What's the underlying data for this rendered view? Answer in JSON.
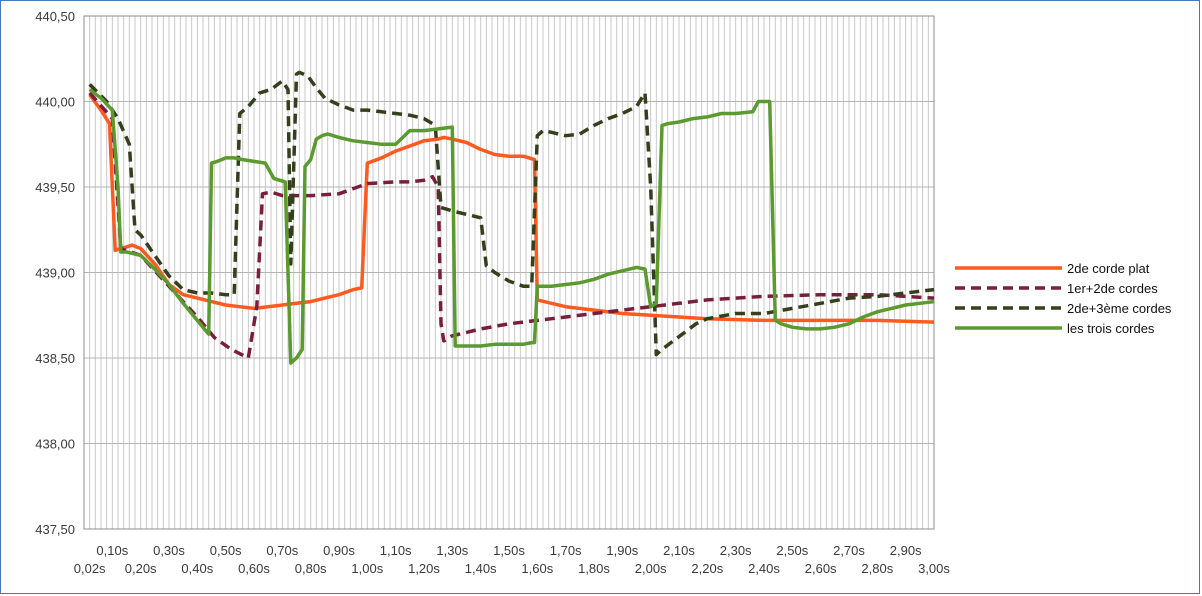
{
  "chart_data": {
    "type": "line",
    "title": "",
    "xlabel": "",
    "ylabel": "",
    "ylim": [
      437.5,
      440.5
    ],
    "yticks": [
      "437,50",
      "438,00",
      "438,50",
      "439,00",
      "439,50",
      "440,00",
      "440,50"
    ],
    "ytick_values": [
      437.5,
      438.0,
      438.5,
      439.0,
      439.5,
      440.0,
      440.5
    ],
    "xlim": [
      0.02,
      3.0
    ],
    "xticks_upper": [
      "0,10s",
      "0,30s",
      "0,50s",
      "0,70s",
      "0,90s",
      "1,10s",
      "1,30s",
      "1,50s",
      "1,70s",
      "1,90s",
      "2,10s",
      "2,30s",
      "2,50s",
      "2,70s",
      "2,90s"
    ],
    "xticks_upper_values": [
      0.1,
      0.3,
      0.5,
      0.7,
      0.9,
      1.1,
      1.3,
      1.5,
      1.7,
      1.9,
      2.1,
      2.3,
      2.5,
      2.7,
      2.9
    ],
    "xticks_lower": [
      "0,02s",
      "0,20s",
      "0,40s",
      "0,60s",
      "0,80s",
      "1,00s",
      "1,20s",
      "1,40s",
      "1,60s",
      "1,80s",
      "2,00s",
      "2,20s",
      "2,40s",
      "2,60s",
      "2,80s",
      "3,00s"
    ],
    "xticks_lower_values": [
      0.02,
      0.2,
      0.4,
      0.6,
      0.8,
      1.0,
      1.2,
      1.4,
      1.6,
      1.8,
      2.0,
      2.2,
      2.4,
      2.6,
      2.8,
      3.0
    ],
    "grid": "vertical-every-0.02s, horizontal-every-0.50",
    "legend_position": "right",
    "series": [
      {
        "name": "2de corde plat",
        "color": "#ff5a1f",
        "dash": "solid",
        "x": [
          0.02,
          0.06,
          0.09,
          0.11,
          0.13,
          0.15,
          0.17,
          0.2,
          0.25,
          0.3,
          0.35,
          0.4,
          0.45,
          0.5,
          0.55,
          0.6,
          0.65,
          0.7,
          0.75,
          0.8,
          0.85,
          0.9,
          0.95,
          0.98,
          1.0,
          1.05,
          1.1,
          1.15,
          1.2,
          1.25,
          1.27,
          1.3,
          1.35,
          1.4,
          1.45,
          1.5,
          1.55,
          1.59,
          1.6,
          1.65,
          1.7,
          1.8,
          1.9,
          2.0,
          2.1,
          2.2,
          2.4,
          2.6,
          2.8,
          3.0
        ],
        "y": [
          440.04,
          439.95,
          439.87,
          439.13,
          439.14,
          439.15,
          439.16,
          439.14,
          439.05,
          438.93,
          438.87,
          438.85,
          438.83,
          438.81,
          438.8,
          438.79,
          438.8,
          438.81,
          438.82,
          438.83,
          438.85,
          438.87,
          438.9,
          438.91,
          439.64,
          439.67,
          439.71,
          439.74,
          439.77,
          439.78,
          439.79,
          439.78,
          439.76,
          439.72,
          439.69,
          439.68,
          439.68,
          439.66,
          438.84,
          438.82,
          438.8,
          438.78,
          438.76,
          438.75,
          438.74,
          438.73,
          438.72,
          438.72,
          438.72,
          438.71
        ]
      },
      {
        "name": "1er+2de cordes",
        "color": "#7a1f3b",
        "dash": "dashed",
        "x": [
          0.02,
          0.1,
          0.13,
          0.2,
          0.3,
          0.4,
          0.46,
          0.52,
          0.58,
          0.61,
          0.63,
          0.66,
          0.7,
          0.8,
          0.9,
          1.0,
          1.1,
          1.15,
          1.2,
          1.23,
          1.25,
          1.26,
          1.27,
          1.3,
          1.35,
          1.4,
          1.5,
          1.6,
          1.7,
          1.8,
          1.9,
          2.0,
          2.1,
          2.2,
          2.4,
          2.6,
          2.8,
          3.0
        ],
        "y": [
          440.05,
          439.9,
          439.14,
          439.1,
          438.92,
          438.74,
          438.62,
          438.55,
          438.5,
          438.8,
          439.46,
          439.47,
          439.45,
          439.45,
          439.46,
          439.52,
          439.53,
          439.53,
          439.54,
          439.56,
          439.5,
          438.7,
          438.6,
          438.63,
          438.65,
          438.67,
          438.7,
          438.72,
          438.74,
          438.76,
          438.78,
          438.8,
          438.82,
          438.84,
          438.86,
          438.87,
          438.87,
          438.85
        ]
      },
      {
        "name": "2de+3ème cordes",
        "color": "#343f1c",
        "dash": "dashed",
        "x": [
          0.02,
          0.08,
          0.12,
          0.16,
          0.18,
          0.2,
          0.25,
          0.3,
          0.35,
          0.4,
          0.45,
          0.5,
          0.53,
          0.55,
          0.58,
          0.62,
          0.66,
          0.7,
          0.72,
          0.73,
          0.75,
          0.76,
          0.79,
          0.82,
          0.85,
          0.9,
          0.95,
          1.0,
          1.05,
          1.1,
          1.15,
          1.2,
          1.24,
          1.26,
          1.28,
          1.3,
          1.35,
          1.4,
          1.42,
          1.45,
          1.5,
          1.55,
          1.58,
          1.6,
          1.62,
          1.65,
          1.7,
          1.75,
          1.8,
          1.85,
          1.9,
          1.95,
          1.98,
          2.0,
          2.02,
          2.04,
          2.08,
          2.12,
          2.16,
          2.2,
          2.3,
          2.4,
          2.5,
          2.6,
          2.7,
          2.8,
          2.9,
          3.0
        ],
        "y": [
          440.1,
          440.0,
          439.9,
          439.75,
          439.25,
          439.22,
          439.1,
          438.98,
          438.9,
          438.88,
          438.88,
          438.87,
          438.87,
          439.93,
          439.97,
          440.05,
          440.07,
          440.12,
          440.07,
          439.05,
          440.16,
          440.17,
          440.15,
          440.08,
          440.02,
          439.98,
          439.95,
          439.95,
          439.94,
          439.93,
          439.92,
          439.9,
          439.86,
          439.38,
          439.37,
          439.36,
          439.34,
          439.32,
          439.04,
          439.0,
          438.95,
          438.92,
          438.92,
          439.8,
          439.83,
          439.82,
          439.8,
          439.81,
          439.86,
          439.9,
          439.93,
          439.97,
          440.05,
          439.5,
          438.52,
          438.55,
          438.6,
          438.65,
          438.7,
          438.73,
          438.76,
          438.76,
          438.79,
          438.82,
          438.85,
          438.86,
          438.88,
          438.9
        ]
      },
      {
        "name": "les trois cordes",
        "color": "#5b9a2f",
        "dash": "solid",
        "x": [
          0.02,
          0.06,
          0.1,
          0.12,
          0.13,
          0.15,
          0.2,
          0.25,
          0.3,
          0.35,
          0.4,
          0.44,
          0.45,
          0.47,
          0.5,
          0.53,
          0.56,
          0.6,
          0.64,
          0.67,
          0.69,
          0.71,
          0.73,
          0.75,
          0.77,
          0.78,
          0.8,
          0.82,
          0.84,
          0.86,
          0.9,
          0.95,
          1.0,
          1.05,
          1.1,
          1.15,
          1.2,
          1.25,
          1.3,
          1.31,
          1.32,
          1.35,
          1.4,
          1.45,
          1.5,
          1.55,
          1.58,
          1.59,
          1.6,
          1.62,
          1.65,
          1.7,
          1.75,
          1.8,
          1.85,
          1.9,
          1.95,
          1.98,
          2.0,
          2.02,
          2.04,
          2.06,
          2.1,
          2.15,
          2.2,
          2.25,
          2.3,
          2.36,
          2.38,
          2.4,
          2.42,
          2.44,
          2.46,
          2.5,
          2.55,
          2.6,
          2.65,
          2.7,
          2.75,
          2.8,
          2.85,
          2.9,
          2.95,
          3.0
        ],
        "y": [
          440.07,
          440.02,
          439.95,
          439.5,
          439.12,
          439.12,
          439.1,
          439.02,
          438.93,
          438.82,
          438.72,
          438.64,
          439.64,
          439.65,
          439.67,
          439.67,
          439.66,
          439.65,
          439.64,
          439.55,
          439.54,
          439.53,
          438.47,
          438.5,
          438.55,
          439.62,
          439.66,
          439.78,
          439.8,
          439.81,
          439.79,
          439.77,
          439.76,
          439.75,
          439.75,
          439.83,
          439.83,
          439.84,
          439.85,
          438.57,
          438.57,
          438.57,
          438.57,
          438.58,
          438.58,
          438.58,
          438.59,
          438.59,
          438.92,
          438.92,
          438.92,
          438.93,
          438.94,
          438.96,
          438.99,
          439.01,
          439.03,
          439.02,
          438.8,
          438.82,
          439.86,
          439.87,
          439.88,
          439.9,
          439.91,
          439.93,
          439.93,
          439.94,
          440.0,
          440.0,
          440.0,
          438.72,
          438.7,
          438.68,
          438.67,
          438.67,
          438.68,
          438.7,
          438.74,
          438.77,
          438.79,
          438.81,
          438.82,
          438.83
        ]
      }
    ]
  }
}
